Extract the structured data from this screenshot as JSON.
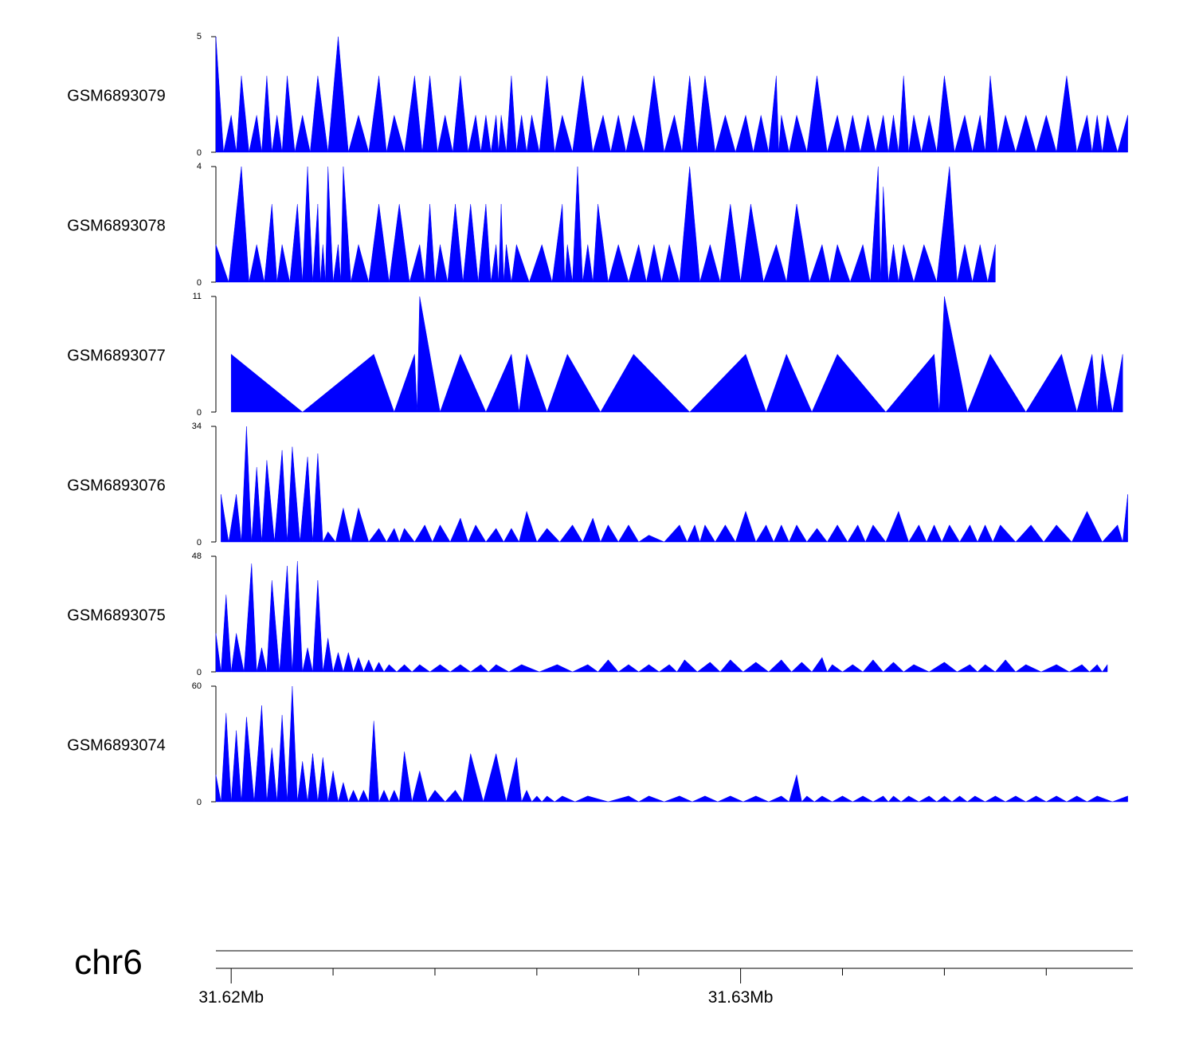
{
  "chart_data": {
    "type": "area",
    "chromosome": "chr6",
    "x_range_mb": [
      31.6197,
      31.6377
    ],
    "axis_ticks": [
      {
        "label": "31.62Mb",
        "value": 31.62
      },
      {
        "label": "",
        "value": 31.622
      },
      {
        "label": "",
        "value": 31.624
      },
      {
        "label": "",
        "value": 31.626
      },
      {
        "label": "",
        "value": 31.628
      },
      {
        "label": "31.63Mb",
        "value": 31.63
      },
      {
        "label": "",
        "value": 31.632
      },
      {
        "label": "",
        "value": 31.634
      },
      {
        "label": "",
        "value": 31.636
      }
    ],
    "colors": {
      "fill": "#0000ff",
      "axis": "#000000"
    },
    "tracks": [
      {
        "name": "GSM6893079",
        "ymax": 5,
        "ytick_top": "5",
        "ytick_bottom": "0",
        "x": [
          31.6197,
          31.62,
          31.6202,
          31.6205,
          31.6207,
          31.6209,
          31.6211,
          31.6214,
          31.6217,
          31.6221,
          31.6225,
          31.6229,
          31.6232,
          31.6236,
          31.6239,
          31.6242,
          31.6245,
          31.6248,
          31.625,
          31.6252,
          31.6253,
          31.6255,
          31.6257,
          31.6259,
          31.6262,
          31.6265,
          31.6269,
          31.6273,
          31.6276,
          31.6279,
          31.6283,
          31.6287,
          31.629,
          31.6293,
          31.6297,
          31.6301,
          31.6304,
          31.6307,
          31.6308,
          31.6311,
          31.6315,
          31.6319,
          31.6322,
          31.6325,
          31.6328,
          31.633,
          31.6332,
          31.6334,
          31.6337,
          31.634,
          31.6344,
          31.6347,
          31.6349,
          31.6352,
          31.6356,
          31.636,
          31.6364,
          31.6368,
          31.637,
          31.6372,
          31.6376
        ],
        "y": [
          5,
          1.6,
          3.3,
          1.6,
          3.3,
          1.6,
          3.3,
          1.6,
          3.3,
          5,
          1.6,
          3.3,
          1.6,
          3.3,
          3.3,
          1.6,
          3.3,
          1.6,
          1.6,
          1.6,
          1.6,
          3.3,
          1.6,
          1.6,
          3.3,
          1.6,
          3.3,
          1.6,
          1.6,
          1.6,
          3.3,
          1.6,
          3.3,
          3.3,
          1.6,
          1.6,
          1.6,
          3.3,
          1.6,
          1.6,
          3.3,
          1.6,
          1.6,
          1.6,
          1.6,
          1.6,
          3.3,
          1.6,
          1.6,
          3.3,
          1.6,
          1.6,
          3.3,
          1.6,
          1.6,
          1.6,
          3.3,
          1.6,
          1.6,
          1.6,
          1.6
        ]
      },
      {
        "name": "GSM6893078",
        "ymax": 4,
        "ytick_top": "4",
        "ytick_bottom": "0",
        "x": [
          31.6197,
          31.6202,
          31.6205,
          31.6208,
          31.621,
          31.6213,
          31.6215,
          31.6217,
          31.6218,
          31.6219,
          31.6221,
          31.6222,
          31.6225,
          31.6229,
          31.6233,
          31.6237,
          31.6239,
          31.6241,
          31.6244,
          31.6247,
          31.625,
          31.6252,
          31.6253,
          31.6254,
          31.6256,
          31.6261,
          31.6265,
          31.6266,
          31.6268,
          31.627,
          31.6272,
          31.6276,
          31.628,
          31.6283,
          31.6286,
          31.629,
          31.6294,
          31.6298,
          31.6302,
          31.6307,
          31.6311,
          31.6316,
          31.6319,
          31.6324,
          31.6327,
          31.6328,
          31.633,
          31.6332,
          31.6336,
          31.6341,
          31.6344,
          31.6347,
          31.635
        ],
        "y": [
          1.3,
          4,
          1.3,
          2.7,
          1.3,
          2.7,
          4,
          2.7,
          1.3,
          4,
          1.3,
          4,
          1.3,
          2.7,
          2.7,
          1.3,
          2.7,
          1.3,
          2.7,
          2.7,
          2.7,
          1.3,
          2.7,
          1.3,
          1.3,
          1.3,
          2.7,
          1.3,
          4,
          1.3,
          2.7,
          1.3,
          1.3,
          1.3,
          1.3,
          4,
          1.3,
          2.7,
          2.7,
          1.3,
          2.7,
          1.3,
          1.3,
          1.3,
          4,
          3.3,
          1.3,
          1.3,
          1.3,
          4,
          1.3,
          1.3,
          1.3
        ]
      },
      {
        "name": "GSM6893077",
        "ymax": 11,
        "ytick_top": "11",
        "ytick_bottom": "0",
        "x": [
          31.62,
          31.6228,
          31.6236,
          31.6237,
          31.6245,
          31.6255,
          31.6258,
          31.6266,
          31.6279,
          31.6301,
          31.6309,
          31.6319,
          31.6338,
          31.634,
          31.6349,
          31.6363,
          31.6369,
          31.6371,
          31.6375
        ],
        "y": [
          5.5,
          5.5,
          5.5,
          11,
          5.5,
          5.5,
          5.5,
          5.5,
          5.5,
          5.5,
          5.5,
          5.5,
          5.5,
          11,
          5.5,
          5.5,
          5.5,
          5.5,
          5.5
        ]
      },
      {
        "name": "GSM6893076",
        "ymax": 34,
        "ytick_top": "34",
        "ytick_bottom": "0",
        "x": [
          31.6198,
          31.6201,
          31.6203,
          31.6205,
          31.6207,
          31.621,
          31.6212,
          31.6215,
          31.6217,
          31.6219,
          31.6222,
          31.6225,
          31.6229,
          31.6232,
          31.6234,
          31.6238,
          31.6241,
          31.6245,
          31.6248,
          31.6252,
          31.6255,
          31.6258,
          31.6262,
          31.6267,
          31.6271,
          31.6274,
          31.6278,
          31.6282,
          31.6288,
          31.6291,
          31.6293,
          31.6297,
          31.6301,
          31.6305,
          31.6308,
          31.6311,
          31.6315,
          31.6319,
          31.6323,
          31.6326,
          31.6331,
          31.6335,
          31.6338,
          31.6341,
          31.6345,
          31.6348,
          31.6351,
          31.6357,
          31.6362,
          31.6368,
          31.6374,
          31.6376
        ],
        "y": [
          14,
          14,
          34,
          22,
          24,
          27,
          28,
          25,
          26,
          3,
          10,
          10,
          4,
          4,
          4,
          5,
          5,
          7,
          5,
          4,
          4,
          9,
          4,
          5,
          7,
          5,
          5,
          2,
          5,
          5,
          5,
          5,
          9,
          5,
          5,
          5,
          4,
          5,
          5,
          5,
          9,
          5,
          5,
          5,
          5,
          5,
          5,
          5,
          5,
          9,
          5,
          14
        ]
      },
      {
        "name": "GSM6893075",
        "ymax": 48,
        "ytick_top": "48",
        "ytick_bottom": "0",
        "x": [
          31.6197,
          31.6199,
          31.6201,
          31.6204,
          31.6206,
          31.6208,
          31.6211,
          31.6213,
          31.6215,
          31.6217,
          31.6219,
          31.6221,
          31.6223,
          31.6225,
          31.6227,
          31.6229,
          31.6231,
          31.6234,
          31.6237,
          31.6241,
          31.6245,
          31.6249,
          31.6252,
          31.6257,
          31.6264,
          31.627,
          31.6274,
          31.6278,
          31.6282,
          31.6286,
          31.6289,
          31.6294,
          31.6298,
          31.6303,
          31.6308,
          31.6312,
          31.6316,
          31.6318,
          31.6322,
          31.6326,
          31.633,
          31.6334,
          31.634,
          31.6345,
          31.6348,
          31.6352,
          31.6356,
          31.6362,
          31.6367,
          31.637,
          31.6372
        ],
        "y": [
          16,
          32,
          16,
          45,
          10,
          38,
          44,
          46,
          10,
          38,
          14,
          8,
          8,
          6,
          5,
          4,
          3,
          3,
          3,
          3,
          3,
          3,
          3,
          3,
          3,
          3,
          5,
          3,
          3,
          3,
          5,
          4,
          5,
          4,
          5,
          4,
          6,
          3,
          3,
          5,
          4,
          3,
          4,
          3,
          3,
          5,
          3,
          3,
          3,
          3,
          3
        ]
      },
      {
        "name": "GSM6893074",
        "ymax": 60,
        "ytick_top": "60",
        "ytick_bottom": "0",
        "x": [
          31.6197,
          31.6199,
          31.6201,
          31.6203,
          31.6206,
          31.6208,
          31.621,
          31.6212,
          31.6214,
          31.6216,
          31.6218,
          31.622,
          31.6222,
          31.6224,
          31.6226,
          31.6228,
          31.623,
          31.6232,
          31.6234,
          31.6237,
          31.624,
          31.6244,
          31.6247,
          31.6252,
          31.6256,
          31.6258,
          31.626,
          31.6262,
          31.6265,
          31.627,
          31.6278,
          31.6282,
          31.6288,
          31.6293,
          31.6298,
          31.6303,
          31.6308,
          31.6311,
          31.6313,
          31.6316,
          31.632,
          31.6324,
          31.6328,
          31.633,
          31.6333,
          31.6337,
          31.634,
          31.6343,
          31.6346,
          31.635,
          31.6354,
          31.6358,
          31.6362,
          31.6366,
          31.637,
          31.6376
        ],
        "y": [
          14,
          46,
          37,
          44,
          50,
          28,
          45,
          60,
          21,
          25,
          23,
          16,
          10,
          6,
          6,
          42,
          6,
          6,
          26,
          16,
          6,
          6,
          25,
          25,
          23,
          6,
          3,
          3,
          3,
          3,
          3,
          3,
          3,
          3,
          3,
          3,
          3,
          14,
          3,
          3,
          3,
          3,
          3,
          3,
          3,
          3,
          3,
          3,
          3,
          3,
          3,
          3,
          3,
          3,
          3,
          3
        ]
      }
    ]
  }
}
